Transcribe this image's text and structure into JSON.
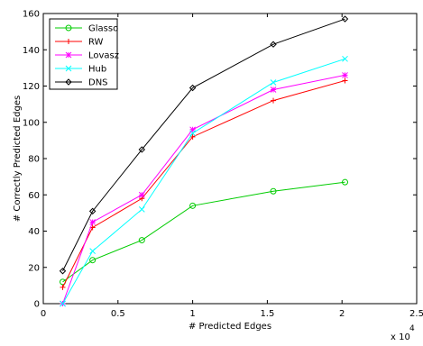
{
  "chart_data": {
    "type": "line",
    "xlabel": "# Predicted Edges",
    "ylabel": "# Correctly Predicted Edges",
    "x_multiplier_label": {
      "base": "x 10",
      "exponent": "4"
    },
    "xlim": [
      0,
      25000
    ],
    "ylim": [
      0,
      160
    ],
    "x_tick_values": [
      0,
      5000,
      10000,
      15000,
      20000,
      25000
    ],
    "x_tick_labels": [
      "0",
      "0.5",
      "1",
      "1.5",
      "2",
      "2.5"
    ],
    "y_tick_values": [
      0,
      20,
      40,
      60,
      80,
      100,
      120,
      140,
      160
    ],
    "y_tick_labels": [
      "0",
      "20",
      "40",
      "60",
      "80",
      "100",
      "120",
      "140",
      "160"
    ],
    "grid": false,
    "legend_position": "top-left",
    "x": [
      1300,
      3300,
      6600,
      10000,
      15400,
      20200
    ],
    "series": [
      {
        "name": "Glasso",
        "color": "#00cc00",
        "marker": "circle",
        "values": [
          12,
          24,
          35,
          54,
          62,
          67
        ]
      },
      {
        "name": "RW",
        "color": "#ff0000",
        "marker": "plus",
        "values": [
          9,
          42,
          58,
          92,
          112,
          123
        ]
      },
      {
        "name": "Lovasz",
        "color": "#ff00ff",
        "marker": "star",
        "values": [
          0,
          45,
          60,
          96,
          118,
          126
        ]
      },
      {
        "name": "Hub",
        "color": "#00ffff",
        "marker": "cross",
        "values": [
          0,
          29,
          52,
          94,
          122,
          135
        ]
      },
      {
        "name": "DNS",
        "color": "#000000",
        "marker": "diamond",
        "values": [
          18,
          51,
          85,
          119,
          143,
          157
        ]
      }
    ]
  }
}
